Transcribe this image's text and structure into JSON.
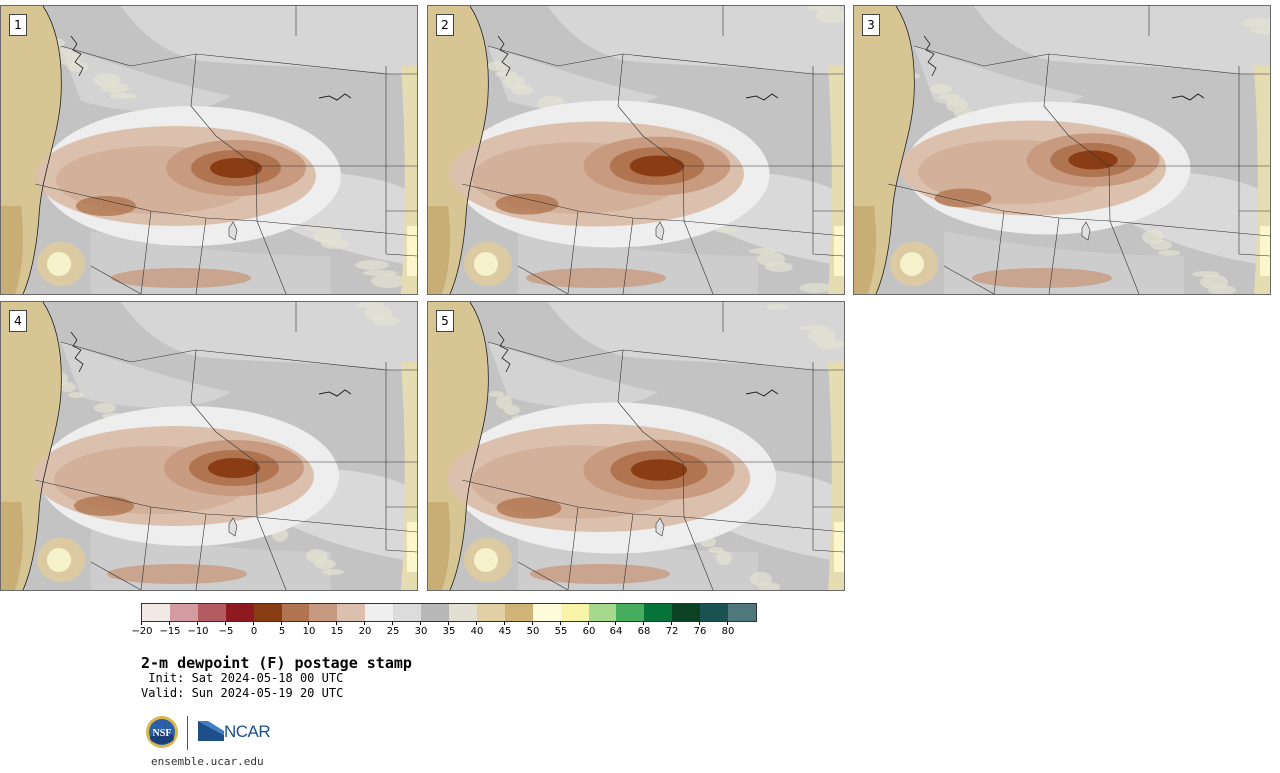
{
  "panels": [
    {
      "label": "1"
    },
    {
      "label": "2"
    },
    {
      "label": "3"
    },
    {
      "label": "4"
    },
    {
      "label": "5"
    }
  ],
  "colorbar": {
    "colors": [
      "#f2e8e6",
      "#d29ca0",
      "#b35b61",
      "#8e1a1f",
      "#8a3d14",
      "#b07550",
      "#c59a80",
      "#dcc0ae",
      "#efefef",
      "#dcdcdc",
      "#b8b8b8",
      "#e2e0d2",
      "#e0d0a4",
      "#cfb377",
      "#fdfbd9",
      "#f8f5a9",
      "#a6d98d",
      "#46ad5e",
      "#067338",
      "#0b4224",
      "#195251",
      "#4f787c"
    ],
    "tick_labels": [
      "−20",
      "−15",
      "−10",
      "−5",
      "0",
      "5",
      "10",
      "15",
      "20",
      "25",
      "30",
      "35",
      "40",
      "45",
      "50",
      "55",
      "60",
      "64",
      "68",
      "72",
      "76",
      "80"
    ]
  },
  "title": "2-m dewpoint (F) postage stamp",
  "init": " Init: Sat 2024-05-18 00 UTC",
  "valid": "Valid: Sun 2024-05-19 20 UTC",
  "logos": {
    "nsf": "NSF",
    "ncar": "NCAR"
  },
  "site": "ensemble.ucar.edu"
}
